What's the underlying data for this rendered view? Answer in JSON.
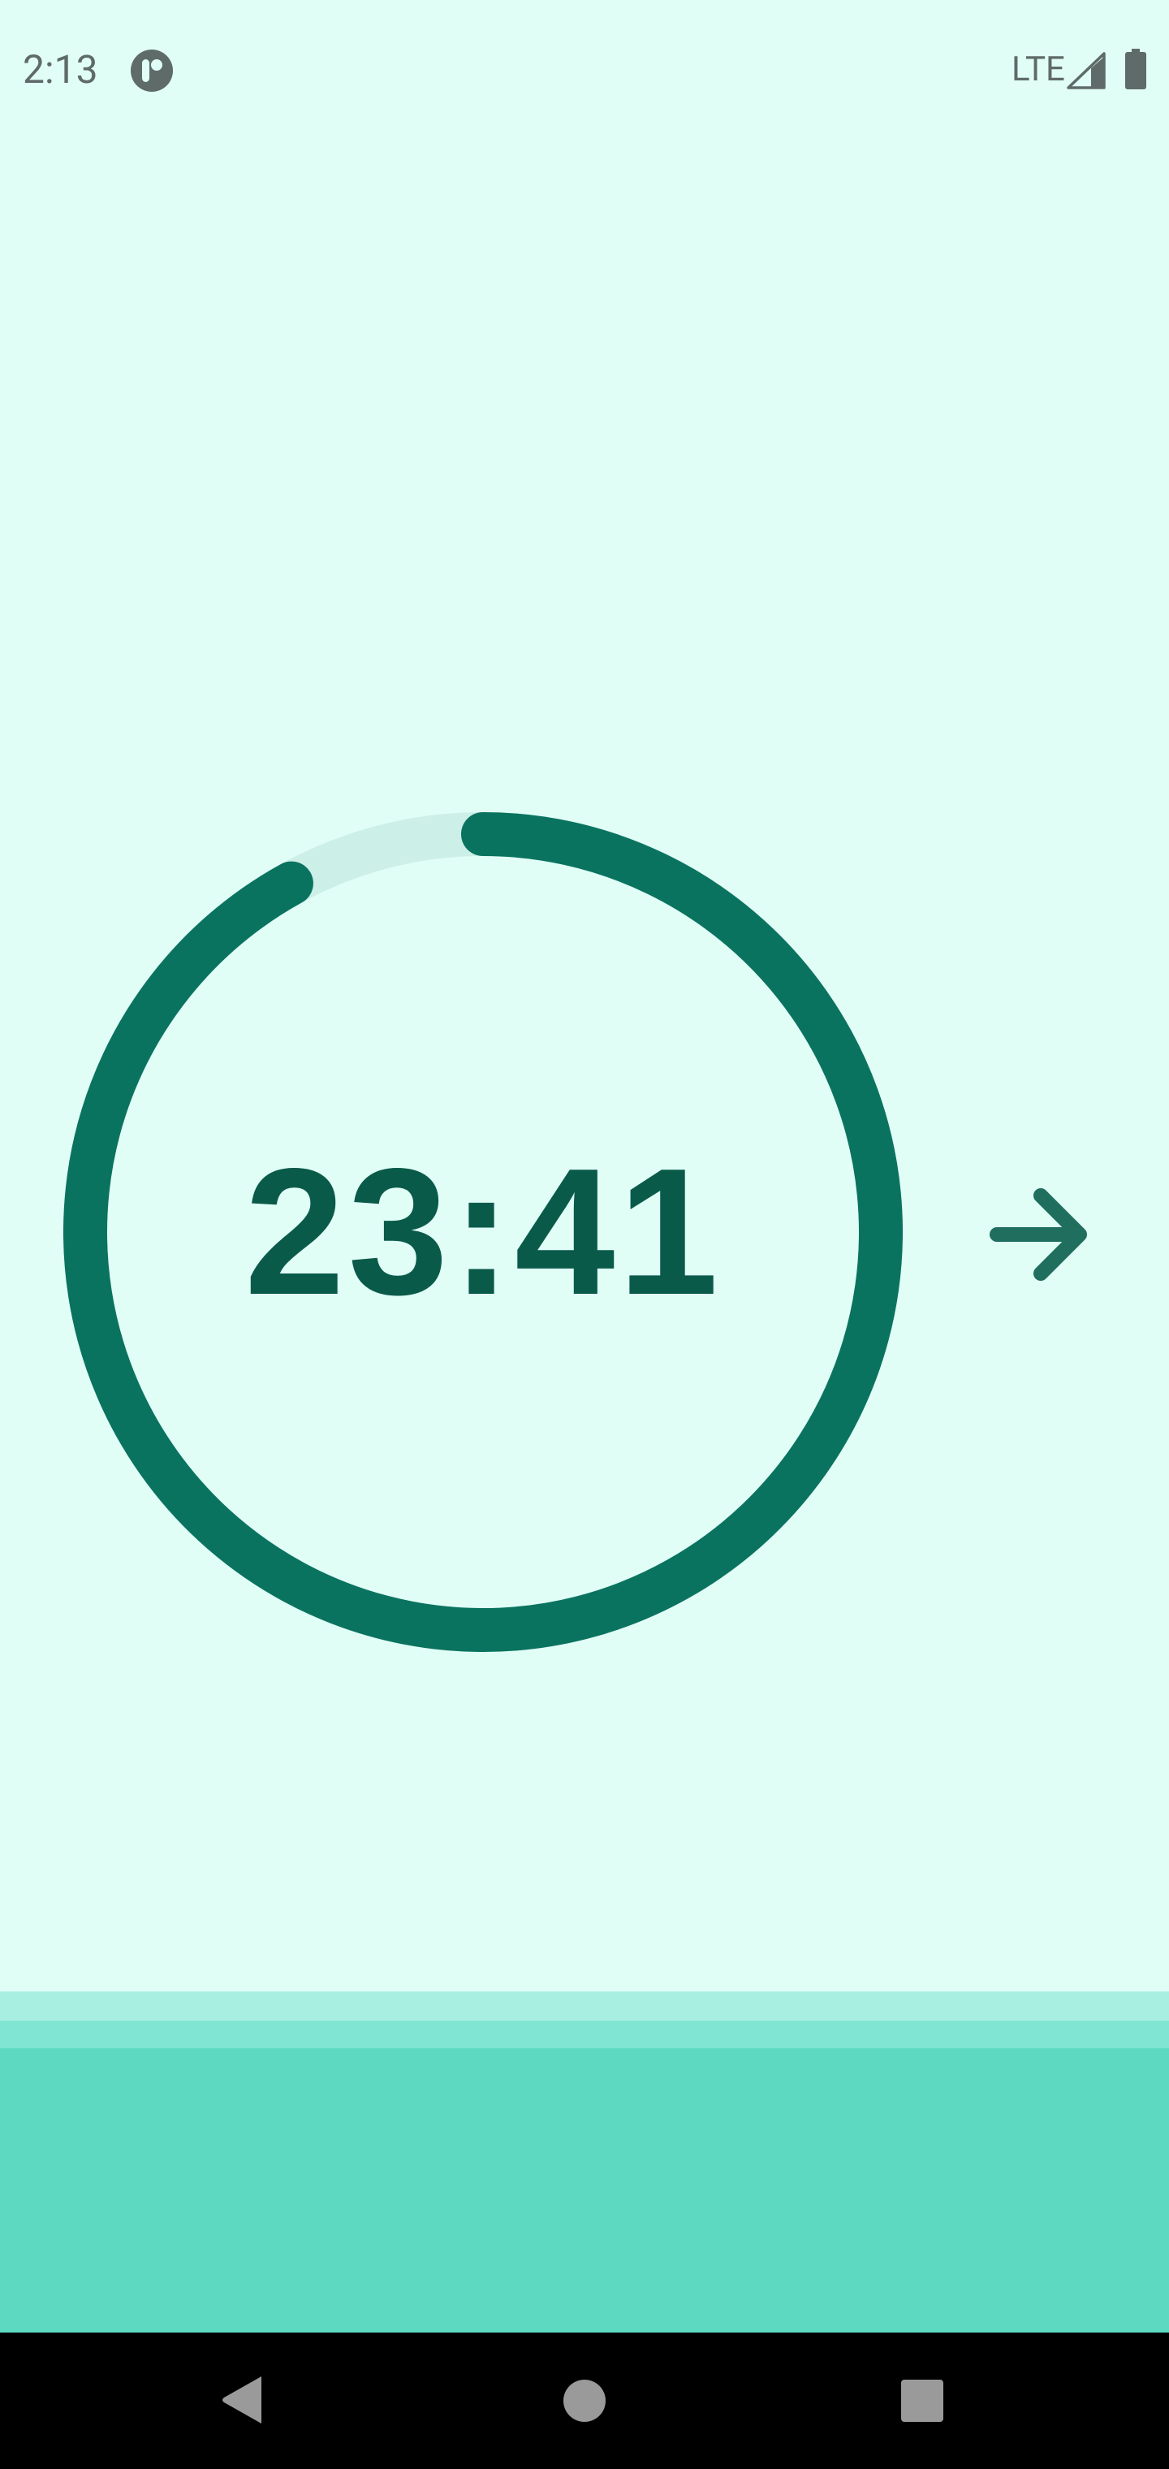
{
  "status_bar": {
    "time": "2:13",
    "network": "LTE",
    "icons": [
      "app-notification-icon",
      "signal-icon",
      "battery-icon"
    ]
  },
  "timer": {
    "display": "23:41",
    "progress_fraction": 0.92,
    "ring_color": "#0a7360",
    "track_color": "#ccefe7",
    "text_color": "#0a5a4a"
  },
  "next_button": {
    "icon": "arrow-right-icon",
    "color": "#1f6e5e"
  },
  "colors": {
    "background": "#e0fdf6",
    "band_light": "#a8efe2",
    "band_mid": "#80e5d2",
    "band_main": "#5dd9c1"
  },
  "nav_bar": {
    "buttons": [
      "back-icon",
      "home-icon",
      "recents-icon"
    ]
  }
}
